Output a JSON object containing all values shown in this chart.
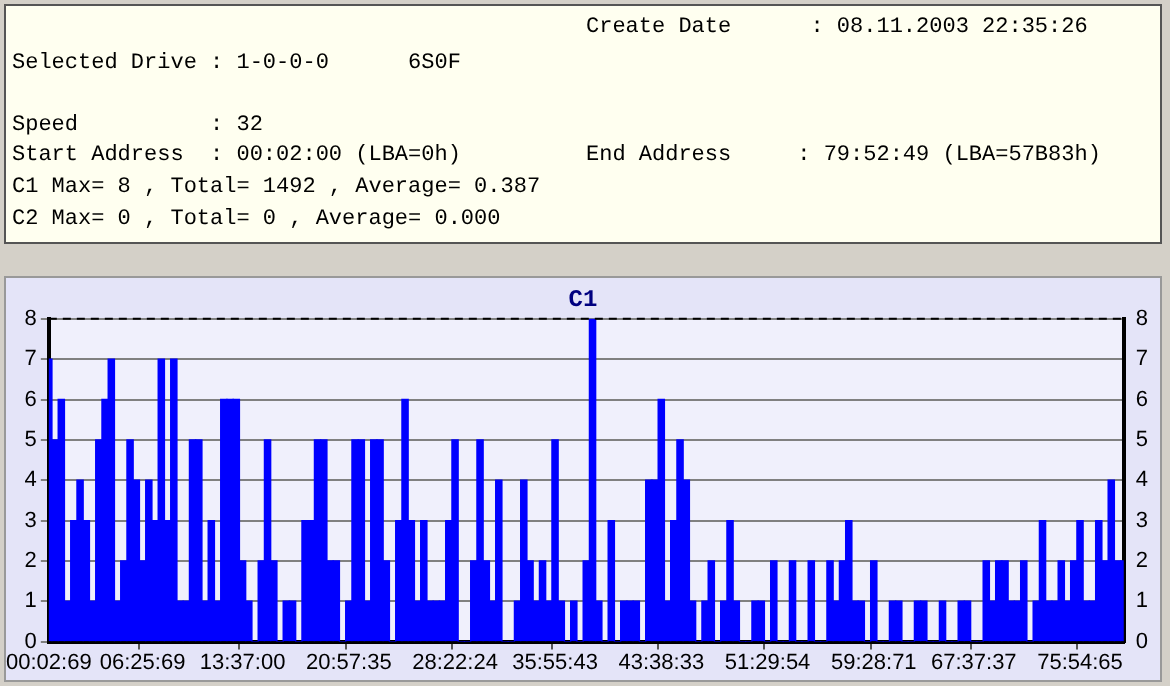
{
  "chart_data": {
    "type": "bar",
    "title": "C1",
    "annotations": [
      "Create Date      : 08.11.2003 22:35:26",
      "Selected Drive : 1-0-0-0      6S0F",
      "Speed          : 32",
      "Start Address  : 00:02:00 (LBA=0h)",
      "End Address     : 79:52:49 (LBA=57B83h)",
      "C1 Max= 8 , Total= 1492 , Average= 0.387",
      "C2 Max= 0 , Total= 0 , Average= 0.000"
    ],
    "categories": [
      "00:02:69",
      null,
      null,
      null,
      null,
      null,
      null,
      null,
      null,
      null,
      null,
      null,
      null,
      null,
      null,
      "06:25:69",
      null,
      null,
      null,
      null,
      null,
      null,
      null,
      null,
      null,
      null,
      null,
      null,
      null,
      null,
      null,
      "13:37:00",
      null,
      null,
      null,
      null,
      null,
      null,
      null,
      null,
      null,
      null,
      null,
      null,
      null,
      null,
      null,
      null,
      "20:57:35",
      null,
      null,
      null,
      null,
      null,
      null,
      null,
      null,
      null,
      null,
      null,
      null,
      null,
      null,
      null,
      null,
      "28:22:24",
      null,
      null,
      null,
      null,
      null,
      null,
      null,
      null,
      null,
      null,
      null,
      null,
      null,
      null,
      null,
      "35:55:43",
      null,
      null,
      null,
      null,
      null,
      null,
      null,
      null,
      null,
      null,
      null,
      null,
      null,
      null,
      null,
      null,
      "43:38:33",
      null,
      null,
      null,
      null,
      null,
      null,
      null,
      null,
      null,
      null,
      null,
      null,
      null,
      null,
      null,
      null,
      "51:29:54",
      null,
      null,
      null,
      null,
      null,
      null,
      null,
      null,
      null,
      null,
      null,
      null,
      null,
      null,
      null,
      null,
      "59:28:71",
      null,
      null,
      null,
      null,
      null,
      null,
      null,
      null,
      null,
      null,
      null,
      null,
      null,
      null,
      null,
      "67:37:37",
      null,
      null,
      null,
      null,
      null,
      null,
      null,
      null,
      null,
      null,
      null,
      null,
      null,
      null,
      null,
      null,
      "75:54:65",
      null,
      null,
      null,
      null,
      null,
      null,
      null
    ],
    "values": [
      7,
      5,
      6,
      1,
      3,
      4,
      3,
      1,
      5,
      6,
      7,
      1,
      2,
      5,
      4,
      2,
      4,
      3,
      7,
      3,
      7,
      1,
      1,
      5,
      5,
      1,
      3,
      1,
      6,
      6,
      6,
      2,
      1,
      0,
      2,
      5,
      2,
      0,
      1,
      1,
      0,
      3,
      3,
      5,
      5,
      2,
      2,
      0,
      1,
      5,
      5,
      1,
      5,
      5,
      2,
      0,
      3,
      6,
      3,
      1,
      3,
      1,
      1,
      1,
      3,
      5,
      0,
      0,
      2,
      5,
      2,
      1,
      4,
      0,
      0,
      1,
      4,
      2,
      1,
      2,
      1,
      5,
      1,
      0,
      1,
      0,
      2,
      8,
      1,
      0,
      3,
      0,
      1,
      1,
      1,
      0,
      4,
      4,
      6,
      1,
      3,
      5,
      4,
      1,
      0,
      1,
      2,
      0,
      1,
      3,
      1,
      0,
      0,
      1,
      1,
      0,
      2,
      0,
      0,
      2,
      0,
      0,
      2,
      0,
      0,
      2,
      1,
      2,
      3,
      1,
      1,
      0,
      2,
      0,
      0,
      1,
      1,
      0,
      0,
      1,
      1,
      0,
      0,
      1,
      0,
      0,
      1,
      1,
      0,
      0,
      2,
      1,
      2,
      2,
      1,
      1,
      2,
      0,
      1,
      3,
      1,
      1,
      2,
      1,
      2,
      3,
      1,
      1,
      3,
      2,
      4,
      2,
      2
    ],
    "color": "#0000ff",
    "ylim": [
      0,
      8
    ],
    "yticks": [
      0,
      1,
      2,
      3,
      4,
      5,
      6,
      7,
      8
    ],
    "y2lim": [
      0,
      8
    ],
    "y2ticks": [
      0,
      1,
      2,
      3,
      4,
      5,
      6,
      7,
      8
    ],
    "grid": "y",
    "legend": false,
    "line_style": "dashed"
  }
}
